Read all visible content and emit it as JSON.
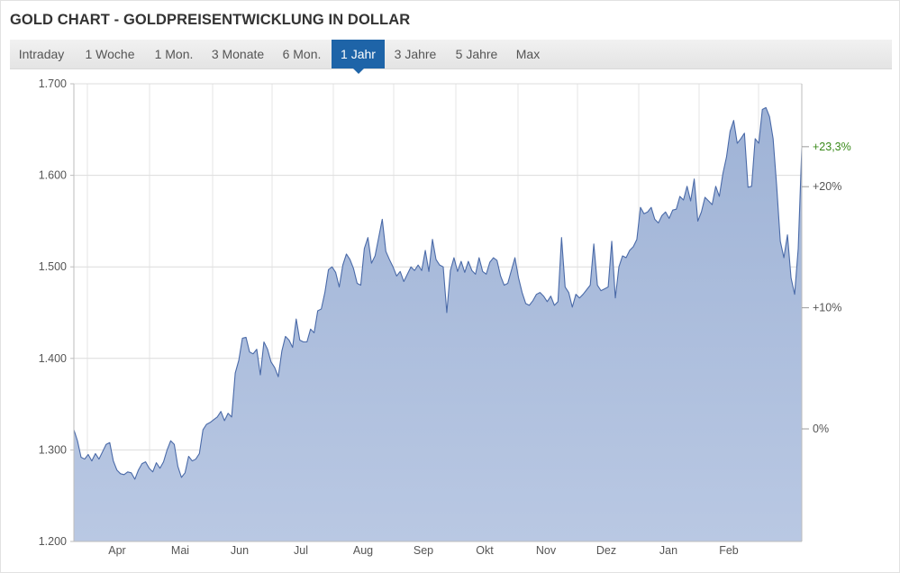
{
  "header": {
    "title": "GOLD CHART - GOLDPREISENTWICKLUNG IN DOLLAR"
  },
  "tabs": [
    {
      "label": "Intraday",
      "active": false
    },
    {
      "label": "1 Woche",
      "active": false
    },
    {
      "label": "1 Mon.",
      "active": false
    },
    {
      "label": "3 Monate",
      "active": false
    },
    {
      "label": "6 Mon.",
      "active": false
    },
    {
      "label": "1 Jahr",
      "active": true
    },
    {
      "label": "3 Jahre",
      "active": false
    },
    {
      "label": "5 Jahre",
      "active": false
    },
    {
      "label": "Max",
      "active": false
    }
  ],
  "colors": {
    "accent": "#1e64a8",
    "line": "#4a6aa8",
    "area": "#a9bcdc",
    "positive": "#3a8a1a"
  },
  "chart_data": {
    "type": "area",
    "title": "",
    "xlabel": "",
    "ylabel": "",
    "ylim": [
      1200,
      1700
    ],
    "yticks": [
      1200,
      1300,
      1400,
      1500,
      1600,
      1700
    ],
    "ytick_labels": [
      "1.200",
      "1.300",
      "1.400",
      "1.500",
      "1.600",
      "1.700"
    ],
    "month_labels": [
      "Apr",
      "Mai",
      "Jun",
      "Jul",
      "Aug",
      "Sep",
      "Okt",
      "Nov",
      "Dez",
      "Jan",
      "Feb"
    ],
    "grid": true,
    "right_axis": {
      "base_value": 1323,
      "ticks": [
        {
          "label": "0%",
          "pct": 0,
          "highlight": false
        },
        {
          "label": "+10%",
          "pct": 10,
          "highlight": false
        },
        {
          "label": "+20%",
          "pct": 20,
          "highlight": false
        },
        {
          "label": "+23,3%",
          "pct": 23.3,
          "highlight": true
        }
      ]
    },
    "series": [
      {
        "values": [
          1322,
          1310,
          1292,
          1290,
          1295,
          1288,
          1296,
          1290,
          1298,
          1306,
          1308,
          1288,
          1278,
          1274,
          1273,
          1276,
          1275,
          1268,
          1278,
          1285,
          1287,
          1280,
          1276,
          1286,
          1280,
          1287,
          1300,
          1310,
          1306,
          1282,
          1270,
          1275,
          1293,
          1288,
          1290,
          1296,
          1322,
          1328,
          1330,
          1333,
          1336,
          1342,
          1332,
          1340,
          1336,
          1384,
          1398,
          1422,
          1423,
          1407,
          1405,
          1410,
          1382,
          1418,
          1410,
          1396,
          1390,
          1380,
          1408,
          1424,
          1420,
          1412,
          1443,
          1420,
          1418,
          1418,
          1432,
          1428,
          1452,
          1454,
          1472,
          1497,
          1500,
          1494,
          1478,
          1502,
          1514,
          1508,
          1498,
          1482,
          1480,
          1520,
          1532,
          1504,
          1512,
          1532,
          1552,
          1517,
          1508,
          1500,
          1490,
          1495,
          1484,
          1492,
          1500,
          1496,
          1502,
          1496,
          1518,
          1495,
          1530,
          1508,
          1502,
          1500,
          1450,
          1496,
          1510,
          1495,
          1506,
          1494,
          1506,
          1496,
          1492,
          1510,
          1495,
          1492,
          1505,
          1510,
          1507,
          1490,
          1480,
          1482,
          1496,
          1510,
          1488,
          1472,
          1460,
          1458,
          1463,
          1470,
          1472,
          1468,
          1462,
          1468,
          1458,
          1462,
          1532,
          1478,
          1472,
          1456,
          1470,
          1466,
          1470,
          1475,
          1480,
          1525,
          1480,
          1474,
          1476,
          1478,
          1528,
          1466,
          1500,
          1512,
          1510,
          1518,
          1522,
          1530,
          1565,
          1558,
          1560,
          1565,
          1552,
          1548,
          1556,
          1560,
          1553,
          1562,
          1563,
          1577,
          1573,
          1588,
          1572,
          1596,
          1550,
          1560,
          1576,
          1572,
          1568,
          1588,
          1577,
          1602,
          1620,
          1648,
          1660,
          1635,
          1640,
          1646,
          1587,
          1588,
          1640,
          1635,
          1672,
          1674,
          1664,
          1640,
          1588,
          1528,
          1510,
          1535,
          1488,
          1470,
          1520,
          1630
        ],
        "color": "#4a6aa8"
      }
    ]
  }
}
